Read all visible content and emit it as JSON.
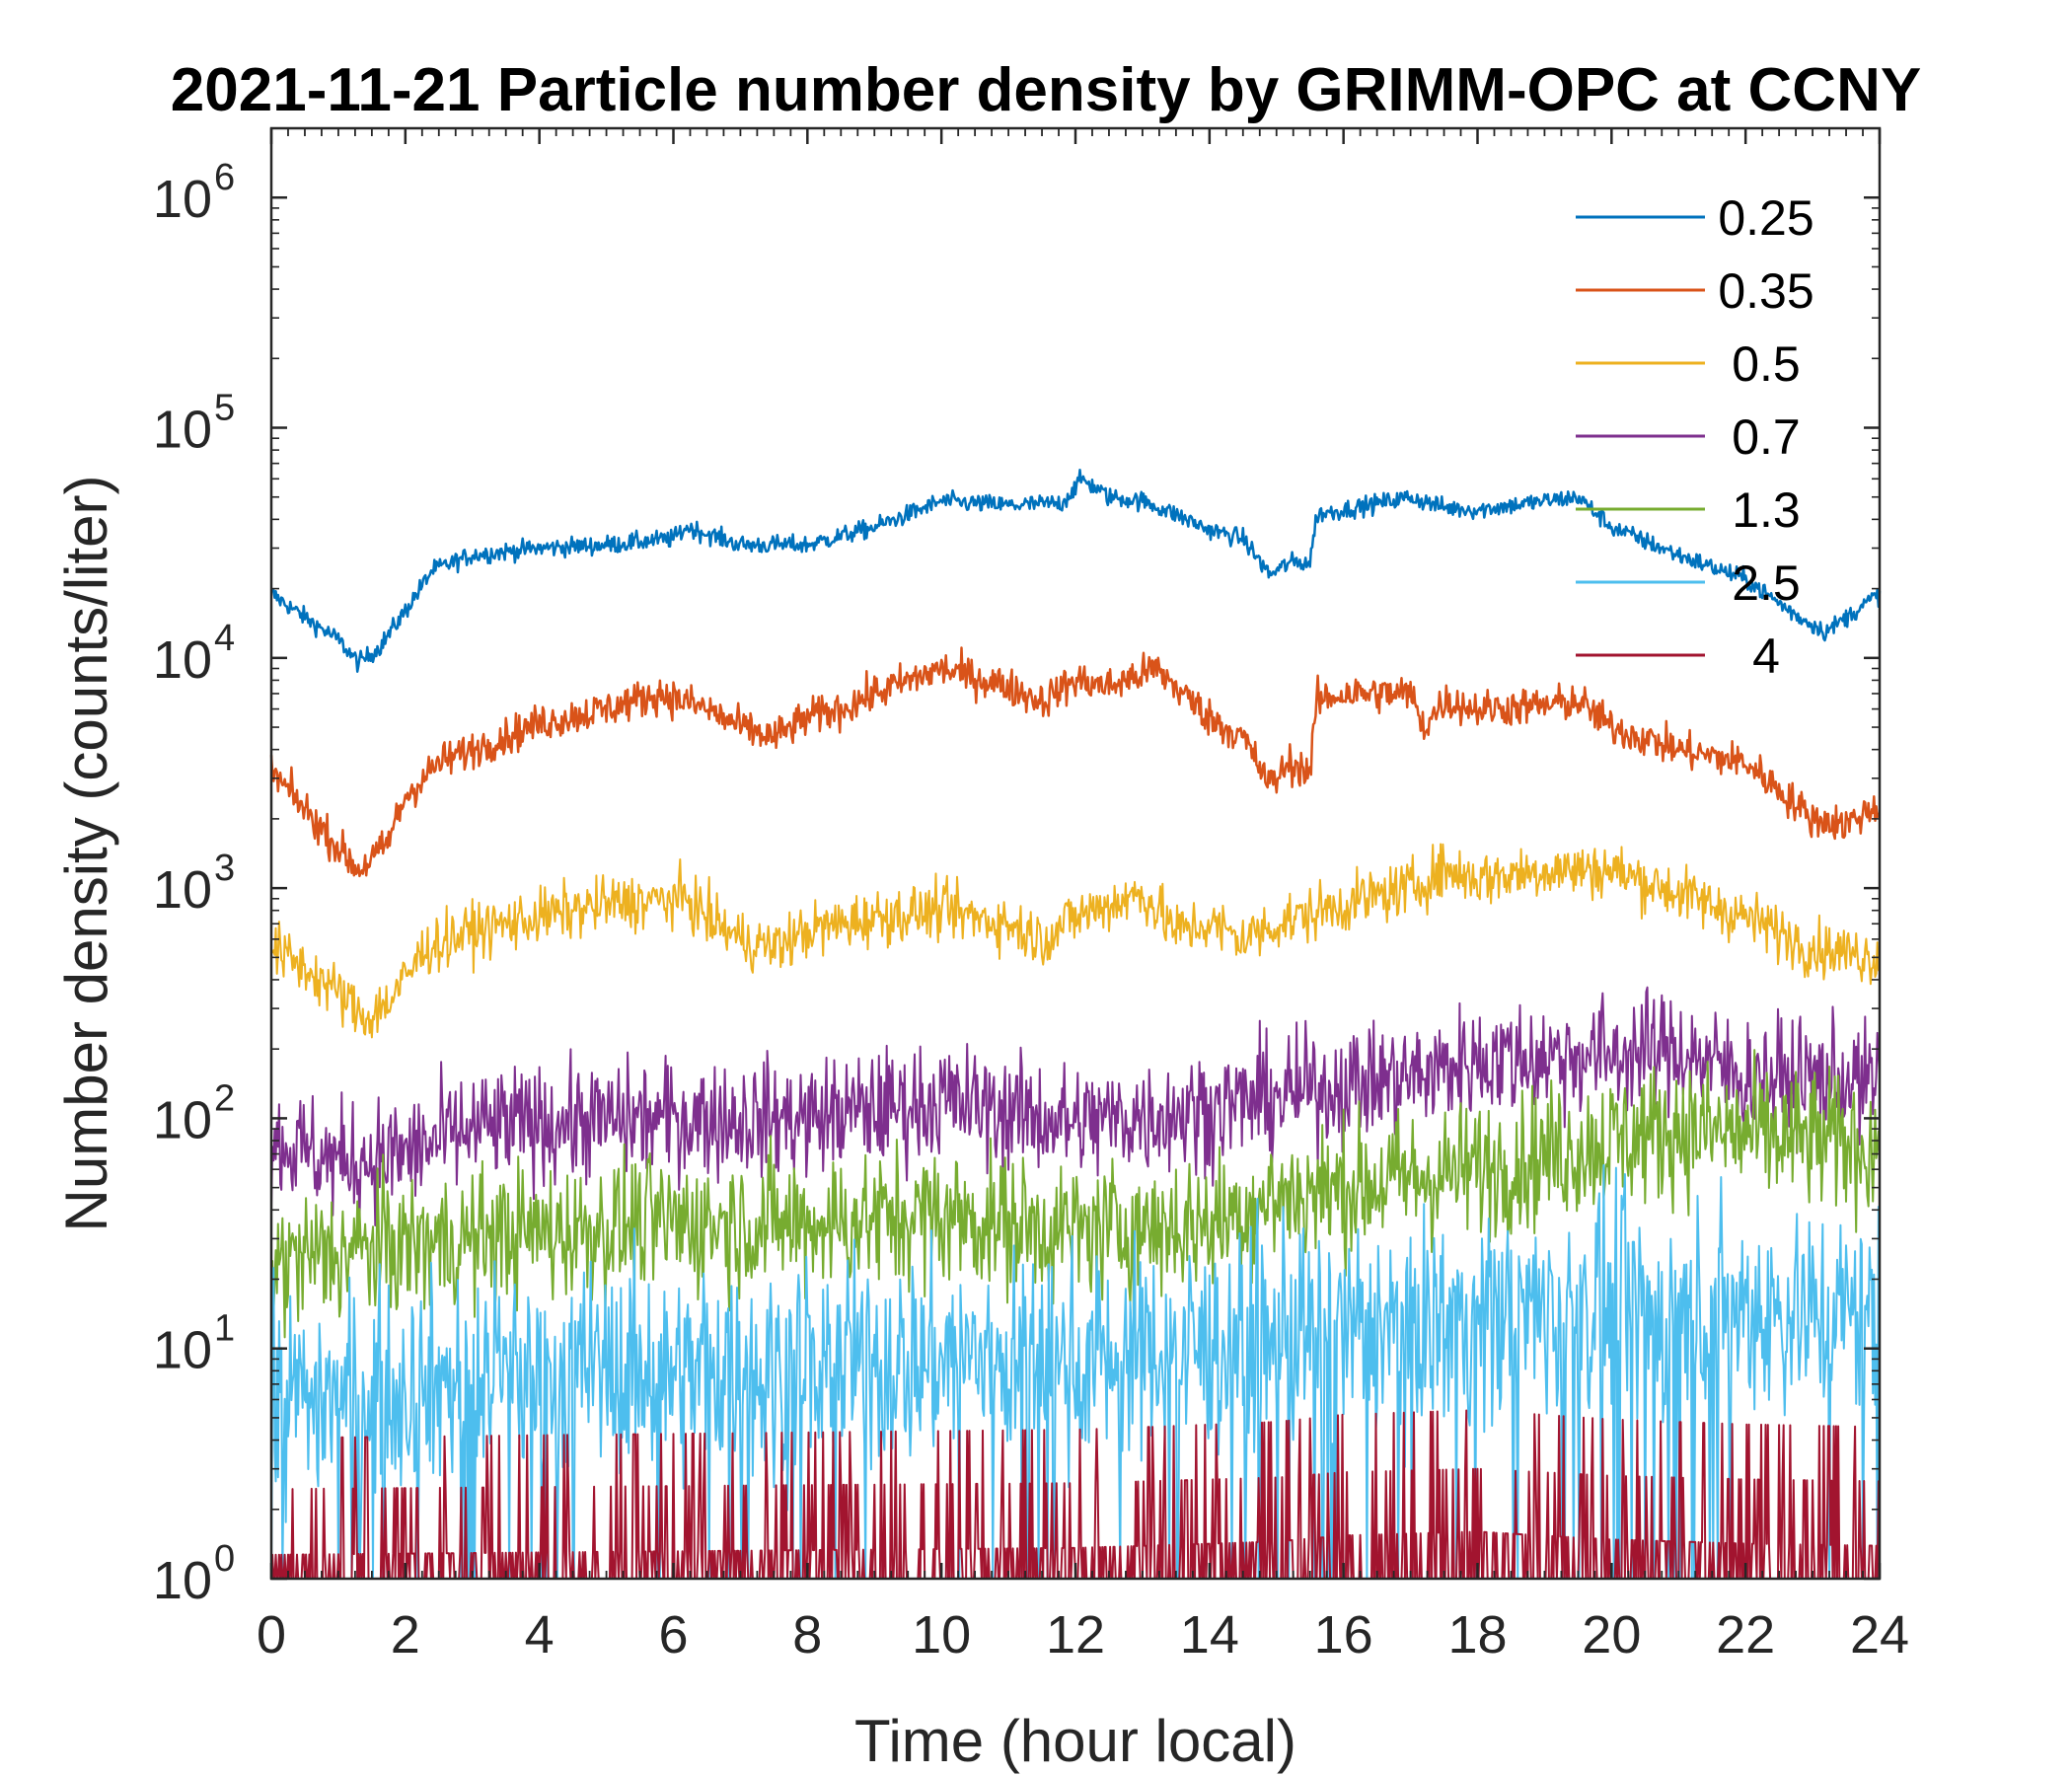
{
  "chart_data": {
    "type": "line",
    "title": "2021-11-21 Particle number density by GRIMM-OPC at CCNY",
    "xlabel": "Time (hour local)",
    "ylabel": "Number density (counts/liter)",
    "xlim": [
      0,
      24
    ],
    "ylim": [
      1,
      2000000
    ],
    "yscale": "log",
    "xticks": [
      0,
      2,
      4,
      6,
      8,
      10,
      12,
      14,
      16,
      18,
      20,
      22,
      24
    ],
    "xtick_labels": [
      "0",
      "2",
      "4",
      "6",
      "8",
      "10",
      "12",
      "14",
      "16",
      "18",
      "20",
      "22",
      "24"
    ],
    "ytick_exponents": [
      "0",
      "1",
      "2",
      "3",
      "4",
      "5",
      "6"
    ],
    "ytick_base": "10",
    "legend_position": "top-right",
    "series": [
      {
        "name": "0.25",
        "color": "#0072BD",
        "noise": 0.04,
        "x": [
          0,
          0.5,
          1,
          1.3,
          1.6,
          2,
          2.4,
          3,
          4,
          5,
          6,
          6.2,
          7,
          8,
          9,
          9.5,
          10,
          11,
          11.8,
          12.1,
          12.5,
          13,
          13.5,
          14,
          14.5,
          14.9,
          15.2,
          15.5,
          15.6,
          16,
          17,
          17.5,
          18,
          19,
          19.5,
          20,
          21,
          22,
          22.8,
          23.2,
          24
        ],
        "y": [
          19000,
          15000,
          12000,
          9500,
          11000,
          16000,
          24000,
          28000,
          30000,
          31000,
          33000,
          37000,
          31000,
          31000,
          37000,
          42000,
          48000,
          46000,
          47000,
          60000,
          50000,
          48000,
          42000,
          36000,
          33000,
          23000,
          26000,
          26000,
          42000,
          44000,
          50000,
          45000,
          44000,
          48000,
          50000,
          37000,
          28000,
          22000,
          15000,
          13000,
          19000
        ]
      },
      {
        "name": "0.35",
        "color": "#D95319",
        "noise": 0.08,
        "x": [
          0,
          0.5,
          1,
          1.3,
          1.7,
          2,
          2.5,
          3,
          4,
          5,
          5.8,
          6.5,
          7,
          7.5,
          8,
          8.5,
          9,
          10,
          11,
          11.5,
          12,
          12.5,
          13.2,
          14,
          14.5,
          14.9,
          15.2,
          15.5,
          15.6,
          16,
          17,
          17.2,
          17.5,
          18,
          19,
          19.5,
          20,
          21,
          22,
          22.3,
          23,
          23.5,
          24
        ],
        "y": [
          3200,
          2200,
          1500,
          1200,
          1500,
          2500,
          3500,
          4000,
          5200,
          6000,
          7000,
          6000,
          5000,
          4500,
          5500,
          6000,
          7000,
          9000,
          7500,
          6500,
          8000,
          7500,
          9000,
          5500,
          4500,
          2800,
          3500,
          3200,
          6500,
          7000,
          7000,
          5000,
          6500,
          6000,
          6200,
          6500,
          5000,
          4000,
          3500,
          3000,
          2000,
          1900,
          2300
        ]
      },
      {
        "name": "0.5",
        "color": "#EDB120",
        "noise": 0.12,
        "x": [
          0,
          0.5,
          1,
          1.4,
          1.8,
          2.3,
          3,
          4,
          5,
          6.2,
          6.5,
          7,
          7.5,
          8,
          9,
          10,
          11,
          11.5,
          12,
          12.5,
          13,
          13.5,
          14,
          14.5,
          15,
          16,
          17,
          17.5,
          18,
          19,
          20,
          21,
          22,
          23,
          24
        ],
        "y": [
          550,
          450,
          350,
          270,
          330,
          550,
          650,
          750,
          850,
          900,
          750,
          600,
          550,
          650,
          750,
          800,
          700,
          600,
          750,
          850,
          950,
          650,
          700,
          600,
          700,
          850,
          1000,
          1200,
          1100,
          1200,
          1200,
          950,
          750,
          550,
          500
        ]
      },
      {
        "name": "0.7",
        "color": "#7E2F8E",
        "noise": 0.25,
        "x": [
          0,
          1,
          2,
          3,
          4,
          6,
          8,
          10,
          12,
          14,
          16,
          17,
          18,
          20,
          21,
          22,
          23,
          24
        ],
        "y": [
          80,
          65,
          70,
          90,
          95,
          100,
          100,
          120,
          95,
          110,
          140,
          150,
          180,
          190,
          200,
          150,
          150,
          140
        ]
      },
      {
        "name": "1.3",
        "color": "#77AC30",
        "noise": 0.3,
        "x": [
          0,
          1,
          2,
          4,
          6,
          8,
          10,
          12,
          14,
          15,
          16,
          18,
          20,
          21,
          22,
          24
        ],
        "y": [
          23,
          26,
          28,
          32,
          35,
          35,
          38,
          32,
          35,
          45,
          50,
          60,
          80,
          90,
          85,
          75
        ]
      },
      {
        "name": "2.5",
        "color": "#4DBEEE",
        "noise": 0.45,
        "x": [
          0,
          2,
          4,
          6,
          8,
          10,
          12,
          14,
          16,
          18,
          20,
          22,
          24
        ],
        "y": [
          6,
          7,
          8,
          8,
          8,
          9,
          9,
          10,
          12,
          14,
          15,
          15,
          14
        ]
      },
      {
        "name": "4",
        "color": "#A2142F",
        "noise": 0,
        "x": [
          0,
          4,
          8,
          12,
          15,
          16,
          18,
          20,
          22,
          24
        ],
        "y": [
          0.9,
          1,
          1.1,
          1.2,
          1.5,
          1.8,
          2,
          1.6,
          1.4,
          1.3
        ]
      }
    ]
  }
}
